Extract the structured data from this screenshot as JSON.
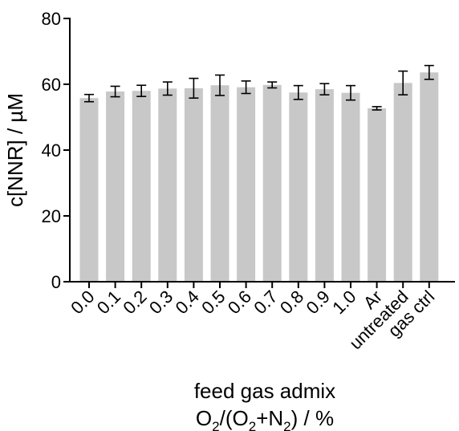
{
  "chart_data": {
    "type": "bar",
    "categories": [
      "0.0",
      "0.1",
      "0.2",
      "0.3",
      "0.4",
      "0.5",
      "0.6",
      "0.7",
      "0.8",
      "0.9",
      "1.0",
      "Ar",
      "untreated",
      "gas ctrl"
    ],
    "values": [
      55.8,
      57.8,
      58.0,
      58.7,
      58.8,
      59.7,
      59.1,
      59.8,
      57.5,
      58.5,
      57.4,
      52.7,
      60.4,
      63.6
    ],
    "errors": [
      1.1,
      1.6,
      1.7,
      2.0,
      3.0,
      3.1,
      1.9,
      0.9,
      2.1,
      1.7,
      2.2,
      0.5,
      3.6,
      2.1
    ],
    "bar_color": "#c8c8c8",
    "ylabel": "c[NNR] / µM",
    "xlabel_line1": "feed gas admix",
    "xlabel_line2": {
      "o1": "O",
      "s1": "2",
      "mid": "/(O",
      "s2": "2",
      "plus": "+N",
      "s3": "2",
      "end": ") / %"
    },
    "ylim": [
      0,
      80
    ],
    "yticks": [
      0,
      20,
      40,
      60,
      80
    ],
    "grid": false
  }
}
